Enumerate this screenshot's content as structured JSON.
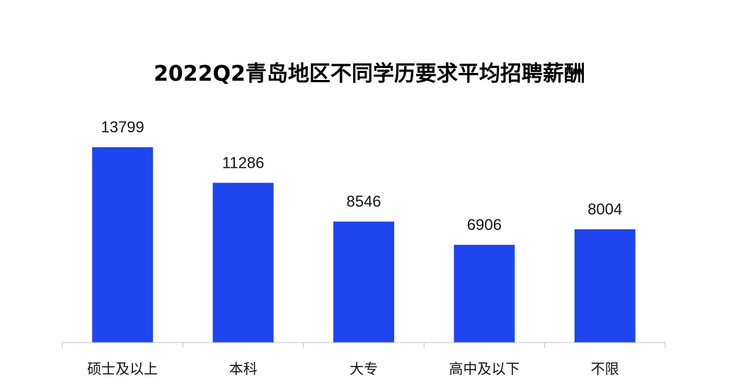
{
  "chart_data": {
    "type": "bar",
    "title": "2022Q2青岛地区不同学历要求平均招聘薪酬",
    "xlabel": "",
    "ylabel": "",
    "categories": [
      "硕士及以上",
      "本科",
      "大专",
      "高中及以下",
      "不限"
    ],
    "values": [
      13799,
      11286,
      8546,
      6906,
      8004
    ],
    "ylim": [
      0,
      16300
    ],
    "bar_color": "#1E45F0",
    "grid": false,
    "legend": "none"
  }
}
